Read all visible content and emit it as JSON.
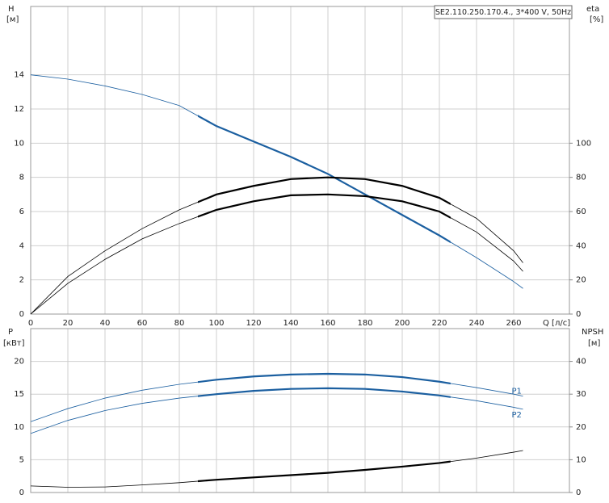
{
  "chart_data": [
    {
      "type": "line",
      "title": "SE2.110.250.170.4., 3*400 V, 50Hz",
      "y_label": "H",
      "y_unit": "[м]",
      "y2_label": "eta",
      "y2_unit": "[%]",
      "x_label": "Q [л/с]",
      "x": [
        0,
        20,
        40,
        60,
        80,
        100,
        120,
        140,
        160,
        180,
        200,
        220,
        240,
        260,
        265
      ],
      "xlim": [
        0,
        290
      ],
      "xticks": [
        0,
        20,
        40,
        60,
        80,
        100,
        120,
        140,
        160,
        180,
        200,
        220,
        240,
        260
      ],
      "ylim": [
        0,
        18
      ],
      "yticks": [
        0,
        2,
        4,
        6,
        8,
        10,
        12,
        14
      ],
      "y2lim": [
        0,
        180
      ],
      "y2ticks": [
        0,
        20,
        40,
        60,
        80,
        100
      ],
      "grid": true,
      "highlight_x": [
        90,
        226
      ],
      "series": [
        {
          "color": "#1b5fa0",
          "values": [
            14.0,
            13.75,
            13.35,
            12.85,
            12.2,
            11.0,
            10.1,
            9.2,
            8.2,
            7.0,
            5.8,
            4.6,
            3.3,
            1.9,
            1.5
          ]
        },
        {
          "color": "#000000",
          "axis": "y2",
          "values": [
            0,
            22,
            37,
            50,
            61,
            70,
            75,
            79,
            80,
            79,
            75,
            68,
            56,
            37,
            30
          ]
        },
        {
          "color": "#000000",
          "axis": "y2",
          "values": [
            0,
            18,
            32,
            44,
            53,
            61,
            66,
            69.5,
            70,
            69,
            66,
            60,
            48,
            31,
            25
          ]
        }
      ]
    },
    {
      "type": "line",
      "y_label": "P",
      "y_unit": "[кВт]",
      "y2_label": "NPSH",
      "y2_unit": "[м]",
      "x": [
        0,
        20,
        40,
        60,
        80,
        100,
        120,
        140,
        160,
        180,
        200,
        220,
        240,
        260,
        265
      ],
      "xlim": [
        0,
        290
      ],
      "ylim": [
        0,
        25
      ],
      "yticks": [
        0,
        5,
        10,
        15,
        20
      ],
      "y2lim": [
        0,
        50
      ],
      "y2ticks": [
        0,
        10,
        20,
        30,
        40
      ],
      "grid": true,
      "highlight_x": [
        90,
        226
      ],
      "series": [
        {
          "name": "P1",
          "color": "#1b5fa0",
          "values": [
            10.8,
            12.8,
            14.4,
            15.6,
            16.5,
            17.2,
            17.7,
            18.0,
            18.1,
            18.0,
            17.6,
            16.9,
            16.0,
            15.0,
            14.7
          ]
        },
        {
          "name": "P2",
          "color": "#1b5fa0",
          "values": [
            9.0,
            11.0,
            12.5,
            13.6,
            14.4,
            15.0,
            15.5,
            15.8,
            15.9,
            15.8,
            15.4,
            14.8,
            14.0,
            13.0,
            12.7
          ]
        },
        {
          "color": "#000000",
          "axis": "y2",
          "values": [
            2.0,
            1.6,
            1.7,
            2.3,
            3.0,
            3.9,
            4.6,
            5.3,
            6.0,
            6.9,
            7.9,
            9.0,
            10.5,
            12.3,
            12.8
          ]
        }
      ]
    }
  ]
}
